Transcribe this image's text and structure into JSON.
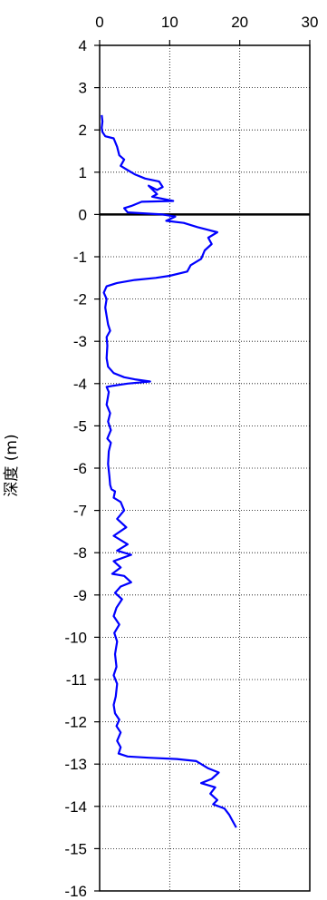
{
  "chart_data": {
    "type": "line",
    "title": "",
    "xlabel": "",
    "ylabel": "深度 (m)",
    "x_axis_position": "top",
    "xlim": [
      0,
      30
    ],
    "ylim": [
      -16,
      4
    ],
    "x_ticks": [
      "0",
      "10",
      "20",
      "30"
    ],
    "y_ticks": [
      "4",
      "3",
      "2",
      "1",
      "0",
      "-1",
      "-2",
      "-3",
      "-4",
      "-5",
      "-6",
      "-7",
      "-8",
      "-9",
      "-10",
      "-11",
      "-12",
      "-13",
      "-14",
      "-15",
      "-16"
    ],
    "grid": {
      "x": true,
      "y": true,
      "style": "dotted"
    },
    "reference_line": {
      "axis": "y",
      "value": 0
    },
    "series": [
      {
        "color": "#0000ff",
        "points": [
          [
            0.3,
            2.35
          ],
          [
            0.4,
            2.2
          ],
          [
            0.3,
            2.05
          ],
          [
            0.4,
            1.95
          ],
          [
            0.8,
            1.85
          ],
          [
            2.0,
            1.8
          ],
          [
            2.5,
            1.6
          ],
          [
            2.8,
            1.4
          ],
          [
            3.5,
            1.3
          ],
          [
            3.0,
            1.15
          ],
          [
            4.0,
            1.05
          ],
          [
            5.0,
            0.95
          ],
          [
            6.5,
            0.85
          ],
          [
            8.5,
            0.78
          ],
          [
            9.0,
            0.65
          ],
          [
            8.2,
            0.58
          ],
          [
            7.0,
            0.68
          ],
          [
            8.2,
            0.48
          ],
          [
            7.5,
            0.42
          ],
          [
            10.5,
            0.32
          ],
          [
            6.0,
            0.3
          ],
          [
            4.5,
            0.2
          ],
          [
            3.5,
            0.15
          ],
          [
            4.0,
            0.05
          ],
          [
            7.0,
            0.02
          ],
          [
            9.0,
            0.0
          ],
          [
            10.8,
            -0.05
          ],
          [
            9.5,
            -0.15
          ],
          [
            12.0,
            -0.2
          ],
          [
            14.0,
            -0.3
          ],
          [
            16.8,
            -0.42
          ],
          [
            15.5,
            -0.55
          ],
          [
            16.0,
            -0.7
          ],
          [
            15.0,
            -0.85
          ],
          [
            14.5,
            -1.05
          ],
          [
            13.0,
            -1.2
          ],
          [
            12.5,
            -1.35
          ],
          [
            10.0,
            -1.45
          ],
          [
            8.0,
            -1.5
          ],
          [
            5.0,
            -1.55
          ],
          [
            2.5,
            -1.62
          ],
          [
            1.0,
            -1.7
          ],
          [
            0.6,
            -1.85
          ],
          [
            1.0,
            -2.0
          ],
          [
            0.8,
            -2.2
          ],
          [
            1.0,
            -2.4
          ],
          [
            1.2,
            -2.6
          ],
          [
            1.5,
            -2.75
          ],
          [
            1.0,
            -2.9
          ],
          [
            1.1,
            -3.1
          ],
          [
            1.0,
            -3.4
          ],
          [
            1.2,
            -3.6
          ],
          [
            2.0,
            -3.75
          ],
          [
            3.5,
            -3.85
          ],
          [
            5.0,
            -3.9
          ],
          [
            7.2,
            -3.95
          ],
          [
            4.0,
            -4.0
          ],
          [
            2.0,
            -4.05
          ],
          [
            1.0,
            -4.08
          ],
          [
            1.3,
            -4.2
          ],
          [
            1.0,
            -4.5
          ],
          [
            1.5,
            -4.7
          ],
          [
            1.2,
            -4.9
          ],
          [
            1.6,
            -5.1
          ],
          [
            1.1,
            -5.3
          ],
          [
            1.6,
            -5.4
          ],
          [
            1.3,
            -5.6
          ],
          [
            1.2,
            -5.9
          ],
          [
            1.4,
            -6.2
          ],
          [
            1.5,
            -6.4
          ],
          [
            1.7,
            -6.5
          ],
          [
            2.2,
            -6.55
          ],
          [
            2.0,
            -6.7
          ],
          [
            3.0,
            -6.8
          ],
          [
            3.5,
            -7.0
          ],
          [
            2.5,
            -7.2
          ],
          [
            3.8,
            -7.4
          ],
          [
            2.0,
            -7.6
          ],
          [
            4.0,
            -7.8
          ],
          [
            2.5,
            -7.95
          ],
          [
            4.5,
            -8.05
          ],
          [
            2.0,
            -8.2
          ],
          [
            3.0,
            -8.35
          ],
          [
            1.8,
            -8.5
          ],
          [
            3.5,
            -8.55
          ],
          [
            4.5,
            -8.7
          ],
          [
            3.0,
            -8.8
          ],
          [
            2.2,
            -8.95
          ],
          [
            3.2,
            -9.1
          ],
          [
            2.4,
            -9.3
          ],
          [
            2.0,
            -9.5
          ],
          [
            2.8,
            -9.7
          ],
          [
            2.1,
            -9.9
          ],
          [
            2.5,
            -10.1
          ],
          [
            2.2,
            -10.4
          ],
          [
            2.4,
            -10.7
          ],
          [
            2.0,
            -10.9
          ],
          [
            2.5,
            -11.1
          ],
          [
            2.3,
            -11.4
          ],
          [
            2.0,
            -11.6
          ],
          [
            2.2,
            -11.8
          ],
          [
            2.8,
            -11.95
          ],
          [
            2.4,
            -12.1
          ],
          [
            3.0,
            -12.25
          ],
          [
            2.5,
            -12.45
          ],
          [
            3.0,
            -12.6
          ],
          [
            2.7,
            -12.75
          ],
          [
            4.0,
            -12.82
          ],
          [
            7.0,
            -12.85
          ],
          [
            11.0,
            -12.88
          ],
          [
            13.8,
            -12.93
          ],
          [
            14.5,
            -13.0
          ],
          [
            15.5,
            -13.1
          ],
          [
            17.0,
            -13.2
          ],
          [
            16.0,
            -13.35
          ],
          [
            14.5,
            -13.45
          ],
          [
            16.5,
            -13.55
          ],
          [
            15.8,
            -13.7
          ],
          [
            16.8,
            -13.85
          ],
          [
            16.2,
            -13.95
          ],
          [
            17.8,
            -14.05
          ],
          [
            18.5,
            -14.2
          ],
          [
            19.0,
            -14.35
          ],
          [
            19.5,
            -14.5
          ]
        ]
      }
    ]
  }
}
